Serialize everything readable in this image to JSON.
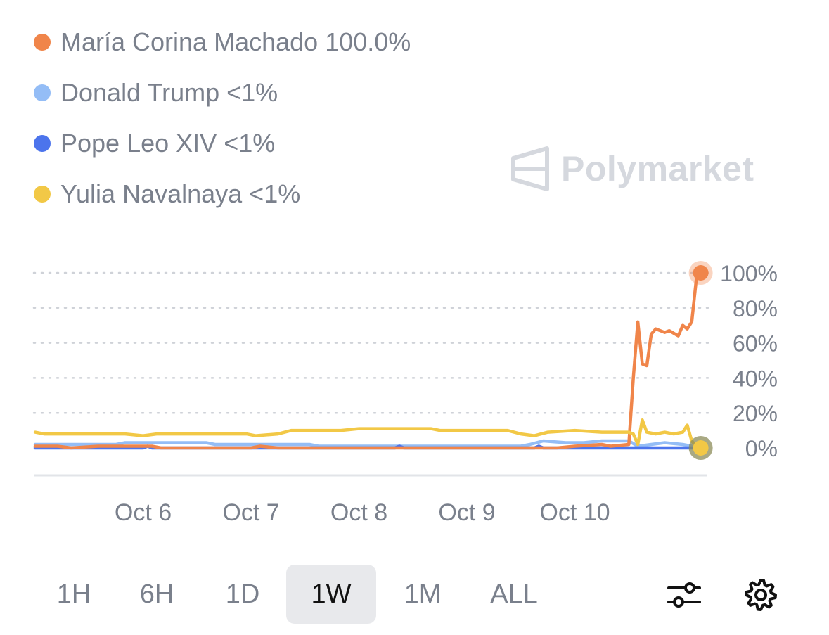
{
  "legend": {
    "items": [
      {
        "name": "María Corina Machado",
        "value": "100.0%",
        "color": "#f0854a"
      },
      {
        "name": "Donald Trump",
        "value": "<1%",
        "color": "#94bdf6"
      },
      {
        "name": "Pope Leo XIV",
        "value": "<1%",
        "color": "#4c74ec"
      },
      {
        "name": "Yulia Navalnaya",
        "value": "<1%",
        "color": "#f2c846"
      }
    ]
  },
  "watermark": {
    "text": "Polymarket",
    "icon": "polymarket-logo-icon"
  },
  "chart_data": {
    "type": "line",
    "x_domain": [
      "2025-10-05 00:00",
      "2025-10-11 05:00"
    ],
    "x_tick_labels": [
      "Oct 6",
      "Oct 7",
      "Oct 8",
      "Oct 9",
      "Oct 10"
    ],
    "x_ticks": [
      "2025-10-06 00:00",
      "2025-10-07 00:00",
      "2025-10-08 00:00",
      "2025-10-09 00:00",
      "2025-10-10 00:00"
    ],
    "y_tick_labels": [
      "100%",
      "80%",
      "60%",
      "40%",
      "20%",
      "0%"
    ],
    "y_ticks": [
      100,
      80,
      60,
      40,
      20,
      0
    ],
    "ylim": [
      0,
      100
    ],
    "grid": true,
    "y_axis_position": "right",
    "series": [
      {
        "name": "Donald Trump",
        "color": "#94bdf6",
        "points": [
          [
            "2025-10-05 00:00",
            2
          ],
          [
            "2025-10-05 18:00",
            2
          ],
          [
            "2025-10-05 20:00",
            3
          ],
          [
            "2025-10-06 14:00",
            3
          ],
          [
            "2025-10-06 16:00",
            2
          ],
          [
            "2025-10-07 13:00",
            2
          ],
          [
            "2025-10-07 15:00",
            1
          ],
          [
            "2025-10-09 12:00",
            1
          ],
          [
            "2025-10-09 14:00",
            2
          ],
          [
            "2025-10-09 17:00",
            4
          ],
          [
            "2025-10-09 22:00",
            3
          ],
          [
            "2025-10-10 02:00",
            3
          ],
          [
            "2025-10-10 06:00",
            4
          ],
          [
            "2025-10-10 12:00",
            4
          ],
          [
            "2025-10-10 14:00",
            1
          ],
          [
            "2025-10-10 20:00",
            3
          ],
          [
            "2025-10-11 00:00",
            2
          ],
          [
            "2025-10-11 02:00",
            1
          ],
          [
            "2025-10-11 04:00",
            0
          ]
        ]
      },
      {
        "name": "Pope Leo XIV",
        "color": "#4c74ec",
        "points": [
          [
            "2025-10-05 00:00",
            0
          ],
          [
            "2025-10-06 00:00",
            0
          ],
          [
            "2025-10-06 01:00",
            1
          ],
          [
            "2025-10-06 02:00",
            0
          ],
          [
            "2025-10-08 08:00",
            0
          ],
          [
            "2025-10-08 09:00",
            1
          ],
          [
            "2025-10-08 10:00",
            0
          ],
          [
            "2025-10-09 15:00",
            0
          ],
          [
            "2025-10-09 16:00",
            1
          ],
          [
            "2025-10-09 17:00",
            0
          ],
          [
            "2025-10-11 04:00",
            0
          ]
        ]
      },
      {
        "name": "María Corina Machado",
        "color": "#f0854a",
        "points": [
          [
            "2025-10-05 00:00",
            1
          ],
          [
            "2025-10-05 05:00",
            1
          ],
          [
            "2025-10-05 08:00",
            0
          ],
          [
            "2025-10-05 14:00",
            1
          ],
          [
            "2025-10-06 02:00",
            1
          ],
          [
            "2025-10-06 04:00",
            0
          ],
          [
            "2025-10-07 00:00",
            0
          ],
          [
            "2025-10-07 02:00",
            1
          ],
          [
            "2025-10-07 06:00",
            0
          ],
          [
            "2025-10-09 20:00",
            0
          ],
          [
            "2025-10-10 00:00",
            1
          ],
          [
            "2025-10-10 06:00",
            2
          ],
          [
            "2025-10-10 08:00",
            1
          ],
          [
            "2025-10-10 12:00",
            2
          ],
          [
            "2025-10-10 13:00",
            40
          ],
          [
            "2025-10-10 14:00",
            72
          ],
          [
            "2025-10-10 15:00",
            48
          ],
          [
            "2025-10-10 16:00",
            47
          ],
          [
            "2025-10-10 17:00",
            65
          ],
          [
            "2025-10-10 18:00",
            68
          ],
          [
            "2025-10-10 20:00",
            66
          ],
          [
            "2025-10-10 21:00",
            67
          ],
          [
            "2025-10-10 23:00",
            64
          ],
          [
            "2025-10-11 00:00",
            70
          ],
          [
            "2025-10-11 01:00",
            68
          ],
          [
            "2025-10-11 02:00",
            72
          ],
          [
            "2025-10-11 03:00",
            96
          ],
          [
            "2025-10-11 04:00",
            100
          ]
        ]
      },
      {
        "name": "Yulia Navalnaya",
        "color": "#f2c846",
        "points": [
          [
            "2025-10-05 00:00",
            9
          ],
          [
            "2025-10-05 02:00",
            8
          ],
          [
            "2025-10-05 20:00",
            8
          ],
          [
            "2025-10-06 00:00",
            7
          ],
          [
            "2025-10-06 03:00",
            8
          ],
          [
            "2025-10-06 23:00",
            8
          ],
          [
            "2025-10-07 01:00",
            7
          ],
          [
            "2025-10-07 06:00",
            8
          ],
          [
            "2025-10-07 09:00",
            10
          ],
          [
            "2025-10-07 20:00",
            10
          ],
          [
            "2025-10-08 00:00",
            11
          ],
          [
            "2025-10-08 16:00",
            11
          ],
          [
            "2025-10-08 18:00",
            10
          ],
          [
            "2025-10-09 09:00",
            10
          ],
          [
            "2025-10-09 12:00",
            8
          ],
          [
            "2025-10-09 15:00",
            7
          ],
          [
            "2025-10-09 18:00",
            9
          ],
          [
            "2025-10-10 00:00",
            10
          ],
          [
            "2025-10-10 06:00",
            9
          ],
          [
            "2025-10-10 12:00",
            9
          ],
          [
            "2025-10-10 13:00",
            8
          ],
          [
            "2025-10-10 14:00",
            2
          ],
          [
            "2025-10-10 15:00",
            16
          ],
          [
            "2025-10-10 16:00",
            9
          ],
          [
            "2025-10-10 18:00",
            8
          ],
          [
            "2025-10-10 20:00",
            9
          ],
          [
            "2025-10-10 22:00",
            8
          ],
          [
            "2025-10-11 00:00",
            9
          ],
          [
            "2025-10-11 01:00",
            13
          ],
          [
            "2025-10-11 02:00",
            4
          ],
          [
            "2025-10-11 03:00",
            1
          ],
          [
            "2025-10-11 04:00",
            0
          ]
        ]
      }
    ]
  },
  "controls": {
    "ranges": [
      {
        "label": "1H",
        "active": false
      },
      {
        "label": "6H",
        "active": false
      },
      {
        "label": "1D",
        "active": false
      },
      {
        "label": "1W",
        "active": true
      },
      {
        "label": "1M",
        "active": false
      },
      {
        "label": "ALL",
        "active": false
      }
    ],
    "filter_icon": "sliders-icon",
    "settings_icon": "gear-icon"
  }
}
